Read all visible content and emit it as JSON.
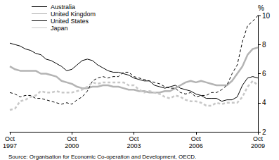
{
  "chart_data": {
    "type": "line",
    "ylabel": "%",
    "annotation": "Source: Organisation for Economic Co-operation and Development, OECD.",
    "categories": [
      "Oct 1997",
      null,
      null,
      null,
      null,
      null,
      null,
      null,
      null,
      null,
      null,
      null,
      "Oct 2000",
      null,
      null,
      null,
      null,
      null,
      null,
      null,
      null,
      null,
      null,
      null,
      "Oct 2003",
      null,
      null,
      null,
      null,
      null,
      null,
      null,
      null,
      null,
      null,
      null,
      "Oct 2006",
      null,
      null,
      null,
      null,
      null,
      null,
      null,
      null,
      null,
      null,
      null,
      "Oct 2009"
    ],
    "series": [
      {
        "name": "Australia",
        "color": "#000000",
        "line_style": "solid",
        "values": [
          8.1,
          8.0,
          7.9,
          7.7,
          7.6,
          7.4,
          7.3,
          7.0,
          6.9,
          6.7,
          6.5,
          6.2,
          6.3,
          6.6,
          6.9,
          7.0,
          6.9,
          6.6,
          6.4,
          6.2,
          6.1,
          6.1,
          6.0,
          5.9,
          5.7,
          5.6,
          5.5,
          5.5,
          5.2,
          5.1,
          5.0,
          5.1,
          5.2,
          5.0,
          4.9,
          4.8,
          4.6,
          4.5,
          4.3,
          4.3,
          4.3,
          4.1,
          4.2,
          4.2,
          4.4,
          5.2,
          5.7,
          5.8,
          5.7
        ]
      },
      {
        "name": "United Kingdom",
        "color": "#b4b4b4",
        "line_style": "solid",
        "values": [
          6.5,
          6.3,
          6.2,
          6.2,
          6.2,
          6.2,
          6.0,
          6.0,
          5.9,
          5.8,
          5.5,
          5.4,
          5.3,
          5.1,
          5.0,
          5.0,
          5.1,
          5.1,
          5.2,
          5.2,
          5.1,
          5.1,
          5.0,
          4.9,
          4.9,
          4.8,
          4.8,
          4.7,
          4.7,
          4.7,
          4.8,
          4.8,
          5.0,
          5.2,
          5.4,
          5.5,
          5.4,
          5.5,
          5.4,
          5.3,
          5.2,
          5.2,
          5.2,
          5.5,
          6.0,
          6.5,
          7.3,
          7.7,
          7.8
        ]
      },
      {
        "name": "United States",
        "color": "#000000",
        "line_style": "dashed",
        "values": [
          4.7,
          4.6,
          4.4,
          4.5,
          4.5,
          4.3,
          4.3,
          4.2,
          4.1,
          4.0,
          3.9,
          4.0,
          3.9,
          4.2,
          4.4,
          4.8,
          5.5,
          5.7,
          5.8,
          5.7,
          5.8,
          5.8,
          6.1,
          6.1,
          5.8,
          5.7,
          5.6,
          5.5,
          5.4,
          5.3,
          5.1,
          5.0,
          5.0,
          4.7,
          4.6,
          4.7,
          4.4,
          4.5,
          4.5,
          4.7,
          4.7,
          4.9,
          5.2,
          6.0,
          6.6,
          8.2,
          9.3,
          9.6,
          10.0
        ]
      },
      {
        "name": "Japan",
        "color": "#c8c8c8",
        "line_style": "dashed",
        "values": [
          3.5,
          3.6,
          4.1,
          4.2,
          4.4,
          4.5,
          4.8,
          4.7,
          4.7,
          4.8,
          4.7,
          4.7,
          4.7,
          4.8,
          4.9,
          5.1,
          5.4,
          5.3,
          5.4,
          5.4,
          5.4,
          5.4,
          5.4,
          5.2,
          5.2,
          4.9,
          4.7,
          4.8,
          4.7,
          4.6,
          4.4,
          4.3,
          4.5,
          4.4,
          4.2,
          4.1,
          4.1,
          4.0,
          3.8,
          3.8,
          4.0,
          3.9,
          4.0,
          4.0,
          4.0,
          4.4,
          5.1,
          5.5,
          5.2
        ]
      }
    ],
    "ylim": [
      2,
      10
    ],
    "yticks": [
      2,
      4,
      6,
      8,
      10
    ],
    "grid": false,
    "legend": "top-left"
  }
}
